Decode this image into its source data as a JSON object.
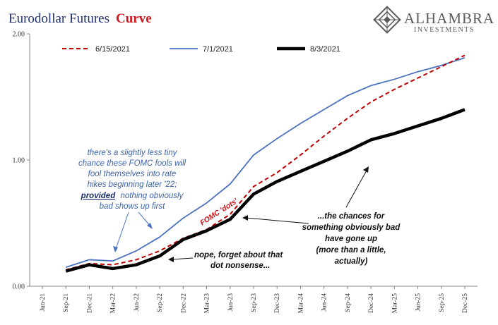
{
  "header": {
    "title_main": "Eurodollar Futures",
    "title_accent": "Curve"
  },
  "logo": {
    "name": "ALHAMBRA",
    "sub": "INVESTMENTS"
  },
  "colors": {
    "series_6_15": "#c00000",
    "series_7_1": "#4a72c0",
    "series_8_3": "#000000",
    "title": "#1f2f6b",
    "accent": "#d0141c",
    "note_blue": "#3d63a8"
  },
  "chart_data": {
    "type": "line",
    "categories": [
      "Jun-21",
      "Sep-21",
      "Dec-21",
      "Mar-22",
      "Jun-22",
      "Sep-22",
      "Dec-22",
      "Mar-23",
      "Jun-23",
      "Sep-23",
      "Dec-23",
      "Mar-24",
      "Jun-24",
      "Sep-24",
      "Dec-24",
      "Mar-25",
      "Jun-25",
      "Sep-25",
      "Dec-25"
    ],
    "ylim": [
      0,
      2
    ],
    "yticks": [
      "0.00",
      "1.00",
      "2.00"
    ],
    "grid": false,
    "legend_position": "top",
    "series": [
      {
        "name": "6/15/2021",
        "style": "dashed",
        "values": [
          null,
          0.13,
          0.18,
          0.17,
          0.21,
          0.28,
          0.38,
          0.45,
          0.57,
          0.79,
          0.9,
          1.04,
          1.19,
          1.33,
          1.46,
          1.56,
          1.65,
          1.74,
          1.83
        ]
      },
      {
        "name": "7/1/2021",
        "style": "solid",
        "values": [
          null,
          0.15,
          0.21,
          0.2,
          0.28,
          0.39,
          0.54,
          0.66,
          0.81,
          1.04,
          1.17,
          1.29,
          1.4,
          1.51,
          1.59,
          1.64,
          1.7,
          1.75,
          1.81
        ]
      },
      {
        "name": "8/3/2021",
        "style": "bold",
        "values": [
          null,
          0.12,
          0.17,
          0.14,
          0.17,
          0.24,
          0.37,
          0.44,
          0.53,
          0.73,
          0.83,
          0.91,
          0.99,
          1.07,
          1.16,
          1.21,
          1.27,
          1.33,
          1.4
        ]
      }
    ]
  },
  "annotations": {
    "blue_note": [
      "there's a slightly less tiny",
      "chance these FOMC fools will",
      "fool themselves into rate",
      "hikes beginning  later '22;",
      "provided",
      "nothing obviously",
      "bad shows up first"
    ],
    "dots_label": "FOMC 'dots'",
    "nope_note": [
      "nope, forget about that",
      "dot nonsense..."
    ],
    "chances_note": [
      "...the chances for",
      "something obviously bad",
      "have gone up",
      "(more than a little,",
      "actually)"
    ]
  }
}
